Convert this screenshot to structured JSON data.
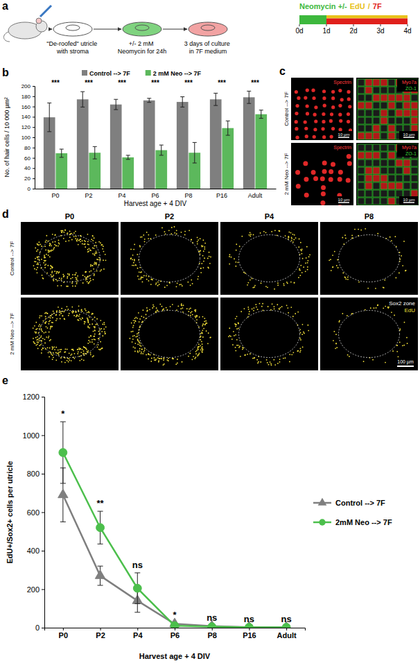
{
  "chart_data": [
    {
      "type": "diagram",
      "label": "a",
      "steps": [
        "\"De-roofed\" utricle with stroma",
        "+/- 2 mM Neomycin for 24h",
        "3 days of culture in 7F medium"
      ],
      "timeline": {
        "items": [
          {
            "text": "Neomycin +/-",
            "color": "#3db83d"
          },
          {
            "text": "EdU",
            "color": "#e8c21a"
          },
          {
            "text": "/",
            "color": "#e8c21a"
          },
          {
            "text": "7F",
            "color": "#e0201b"
          }
        ],
        "days": [
          {
            "value": 0,
            "label": "0d"
          },
          {
            "value": 1,
            "label": "1d"
          },
          {
            "value": 2,
            "label": "2d"
          },
          {
            "value": 3,
            "label": "3d"
          },
          {
            "value": 4,
            "label": "4d"
          }
        ],
        "segments": [
          {
            "from": 0,
            "to": 1,
            "color": "#3db83d"
          },
          {
            "from": 1,
            "to": 4,
            "color": "#e8c21a"
          },
          {
            "from": 1,
            "to": 4,
            "color": "#e0201b"
          }
        ]
      }
    },
    {
      "type": "bar",
      "label": "b",
      "categories": [
        "P0",
        "P2",
        "P4",
        "P6",
        "P8",
        "P16",
        "Adult"
      ],
      "series": [
        {
          "name": "Control --> 7F",
          "color": "#7f7f7f",
          "values": [
            139,
            174,
            164,
            172,
            169,
            174,
            178
          ],
          "errors": [
            28,
            15,
            10,
            4,
            10,
            12,
            12
          ]
        },
        {
          "name": "2 mM Neo --> 7F",
          "color": "#5cb85c",
          "values": [
            69,
            70,
            61,
            75,
            70,
            118,
            145
          ],
          "errors": [
            8,
            12,
            4,
            10,
            20,
            14,
            8
          ]
        }
      ],
      "ylim": [
        0,
        200
      ],
      "yticks": [
        0,
        20,
        40,
        60,
        80,
        100,
        120,
        140,
        160,
        180,
        200
      ],
      "y_label": "No. of hair cells / 10 000 µm²",
      "x_label": "Harvest age + 4 DIV",
      "significance": [
        "***",
        "***",
        "***",
        "***",
        "***",
        "***",
        "***"
      ],
      "legend": "top",
      "grid": false
    },
    {
      "type": "image",
      "label": "c",
      "rows": [
        "Control --> 7F",
        "2 mM Neo --> 7F"
      ],
      "channels": [
        [
          {
            "text": "Spectrin",
            "color": "#ff3b3b"
          }
        ],
        [
          {
            "text": "Myo7a",
            "color": "#ff3b3b"
          },
          {
            "text": "ZO-1",
            "color": "#3bd43b"
          }
        ]
      ],
      "scale_bar": "10 µm"
    },
    {
      "type": "image",
      "label": "d",
      "columns": [
        "P0",
        "P2",
        "P4",
        "P8"
      ],
      "rows": [
        "Control --> 7F",
        "2 mM Neo --> 7F"
      ],
      "zone_label": "Sox2 zone",
      "stain_label": "EdU",
      "scale_bar": "100 µm"
    },
    {
      "type": "line",
      "label": "e",
      "categories": [
        "P0",
        "P2",
        "P4",
        "P6",
        "P8",
        "P16",
        "Adult"
      ],
      "series": [
        {
          "name": "Control --> 7F",
          "color": "#7f7f7f",
          "marker": "triangle",
          "values": [
            690,
            270,
            140,
            20,
            8,
            3,
            2
          ],
          "errors": [
            140,
            50,
            60,
            5,
            3,
            2,
            1
          ]
        },
        {
          "name": "2mM Neo --> 7F",
          "color": "#4cbf4c",
          "marker": "circle",
          "values": [
            910,
            520,
            205,
            10,
            5,
            2,
            2
          ],
          "errors": [
            160,
            85,
            80,
            4,
            3,
            1,
            1
          ]
        }
      ],
      "ylim": [
        0,
        1200
      ],
      "yticks": [
        0,
        200,
        400,
        600,
        800,
        1000,
        1200
      ],
      "y_label": "EdU+/Sox2+ cells per utricle",
      "x_label": "Harvest age + 4 DIV",
      "significance": [
        "*",
        "**",
        "ns",
        "*",
        "ns",
        "ns",
        "ns"
      ],
      "legend": "right",
      "grid": false
    }
  ]
}
